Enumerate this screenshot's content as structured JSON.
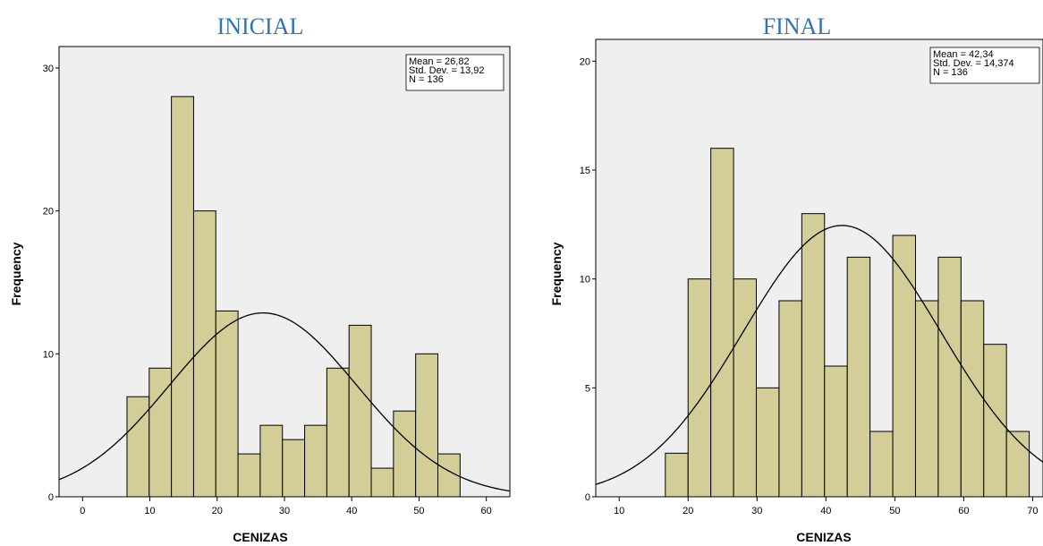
{
  "chart_data": [
    {
      "type": "bar",
      "title": "INICIAL",
      "xlabel": "CENIZAS",
      "ylabel": "Frequency",
      "xlim": [
        -3.5,
        63.5
      ],
      "ylim": [
        0,
        31.5
      ],
      "xticks": [
        0,
        10,
        20,
        30,
        40,
        50,
        60
      ],
      "yticks": [
        0,
        10,
        20,
        30
      ],
      "bin_edges": [
        6.6,
        9.9,
        13.2,
        16.5,
        19.8,
        23.1,
        26.4,
        29.7,
        33.0,
        36.3,
        39.6,
        42.9,
        46.2,
        49.5,
        52.8,
        56.1
      ],
      "values": [
        7,
        9,
        28,
        20,
        13,
        3,
        5,
        4,
        5,
        9,
        12,
        2,
        6,
        10,
        3
      ],
      "normal_curve": {
        "mean": 26.82,
        "sd": 13.92,
        "n": 136
      },
      "stats_box": [
        "Mean = 26,82",
        "Std. Dev. = 13,92",
        "N = 136"
      ],
      "grid": false,
      "stats_position": "top-right"
    },
    {
      "type": "bar",
      "title": "FINAL",
      "xlabel": "CENIZAS",
      "ylabel": "Frequency",
      "xlim": [
        6.6,
        71.5
      ],
      "ylim": [
        0,
        21
      ],
      "xticks": [
        10,
        20,
        30,
        40,
        50,
        60,
        70
      ],
      "yticks": [
        0,
        5,
        10,
        15,
        20
      ],
      "bin_edges": [
        16.7,
        20.0,
        23.3,
        26.6,
        29.9,
        33.2,
        36.5,
        39.8,
        43.1,
        46.4,
        49.7,
        53.0,
        56.3,
        59.6,
        62.9,
        66.2,
        69.5
      ],
      "values": [
        2,
        10,
        16,
        10,
        5,
        9,
        13,
        6,
        11,
        3,
        12,
        9,
        11,
        9,
        7,
        3
      ],
      "normal_curve": {
        "mean": 42.34,
        "sd": 14.374,
        "n": 136
      },
      "stats_box": [
        "Mean = 42,34",
        "Std. Dev. = 14,374",
        "N = 136"
      ],
      "grid": false,
      "stats_position": "top-right"
    }
  ]
}
